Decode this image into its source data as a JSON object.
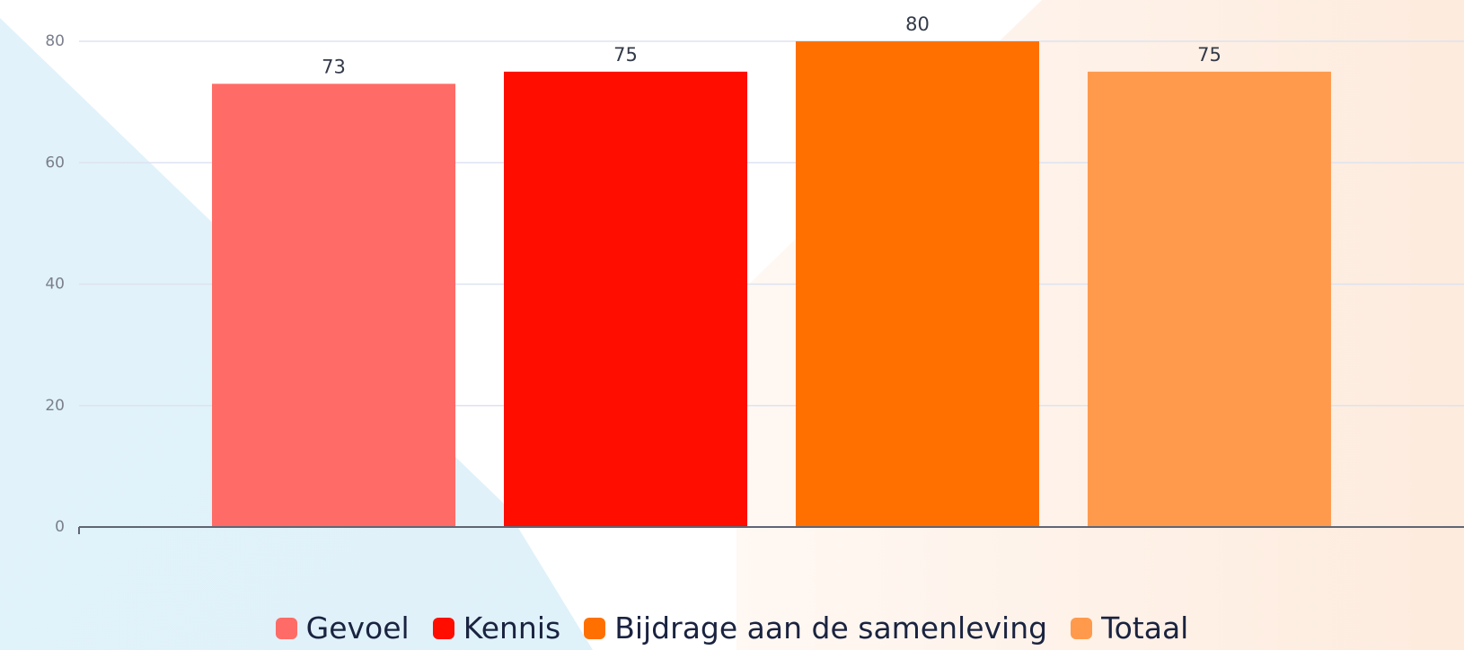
{
  "chart_data": {
    "type": "bar",
    "categories": [
      null
    ],
    "series": [
      {
        "name": "Gevoel",
        "color": "#ff6b66",
        "values": [
          73
        ]
      },
      {
        "name": "Kennis",
        "color": "#ff0e00",
        "values": [
          75
        ]
      },
      {
        "name": "Bijdrage aan de samenleving",
        "color": "#ff7000",
        "values": [
          80
        ]
      },
      {
        "name": "Totaal",
        "color": "#ff9a4d",
        "values": [
          75
        ]
      }
    ],
    "ylim": [
      0,
      80
    ],
    "yticks": [
      0,
      20,
      40,
      60,
      80
    ],
    "grid": true,
    "legend": "bottom"
  }
}
